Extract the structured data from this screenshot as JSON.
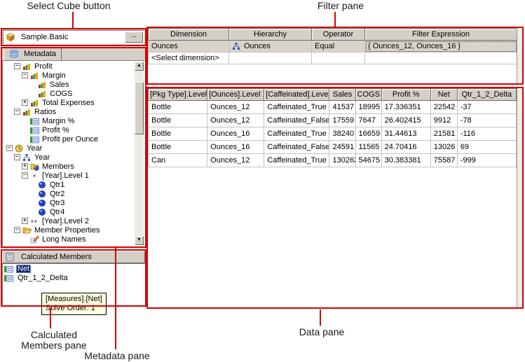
{
  "callouts": {
    "select_cube": "Select Cube button",
    "filter_pane": "Filter pane",
    "calculated_members_pane": "Calculated Members pane",
    "metadata_pane": "Metadata pane",
    "data_pane": "Data pane"
  },
  "colors": {
    "callout_red": "#d40000",
    "chrome_gray": "#d4d0c8",
    "selection_blue": "#0a246a",
    "tooltip_bg": "#ffffe1",
    "highlight_row": "#d8d4cb"
  },
  "cube_selector": {
    "value": "Sample.Basic",
    "browse_label": "...",
    "icon": "cube-icon"
  },
  "metadata_tab": {
    "label": "Metadata",
    "icon": "metadata-icon"
  },
  "metadata_tree": {
    "items": [
      {
        "label": "Profit",
        "level": 1,
        "expander": "minus",
        "icon": "chart"
      },
      {
        "label": "Margin",
        "level": 2,
        "expander": "minus",
        "icon": "chart"
      },
      {
        "label": "Sales",
        "level": 3,
        "expander": "none",
        "icon": "chart"
      },
      {
        "label": "COGS",
        "level": 3,
        "expander": "none",
        "icon": "chart"
      },
      {
        "label": "Total Expenses",
        "level": 2,
        "expander": "plus",
        "icon": "chart"
      },
      {
        "label": "Ratios",
        "level": 1,
        "expander": "minus",
        "icon": "chart"
      },
      {
        "label": "Margin %",
        "level": 2,
        "expander": "none",
        "icon": "calc"
      },
      {
        "label": "Profit %",
        "level": 2,
        "expander": "none",
        "icon": "calc"
      },
      {
        "label": "Profit per Ounce",
        "level": 2,
        "expander": "none",
        "icon": "calc"
      },
      {
        "label": "Year",
        "level": 0,
        "expander": "minus",
        "icon": "clock"
      },
      {
        "label": "Year",
        "level": 1,
        "expander": "minus",
        "icon": "hierarchy"
      },
      {
        "label": "Members",
        "level": 2,
        "expander": "plus",
        "icon": "members"
      },
      {
        "label": "[Year].Level 1",
        "level": 2,
        "expander": "minus",
        "icon": "level1"
      },
      {
        "label": "Qtr1",
        "level": 3,
        "expander": "none",
        "icon": "ball"
      },
      {
        "label": "Qtr2",
        "level": 3,
        "expander": "none",
        "icon": "ball"
      },
      {
        "label": "Qtr3",
        "level": 3,
        "expander": "none",
        "icon": "ball"
      },
      {
        "label": "Qtr4",
        "level": 3,
        "expander": "none",
        "icon": "ball"
      },
      {
        "label": "[Year].Level 2",
        "level": 2,
        "expander": "plus",
        "icon": "level2"
      },
      {
        "label": "Member Properties",
        "level": 1,
        "expander": "minus",
        "icon": "folderopen"
      },
      {
        "label": "Long Names",
        "level": 2,
        "expander": "none",
        "icon": "pencil"
      }
    ]
  },
  "calculated_members": {
    "title": "Calculated Members",
    "icon": "calculator-icon",
    "items": [
      {
        "label": "Net",
        "selected": true,
        "icon": "calc"
      },
      {
        "label": "Qtr_1_2_Delta",
        "selected": false,
        "icon": "calc"
      }
    ],
    "tooltip": {
      "line1": "[Measures].[Net]",
      "line2": "Solve Order: 1"
    }
  },
  "filter_pane": {
    "headers": [
      "Dimension",
      "Hierarchy",
      "Operator",
      "Filter Expression"
    ],
    "rows": [
      {
        "dimension": "Ounces",
        "hierarchy": "Ounces",
        "hierarchy_icon": "hierarchy",
        "operator": "Equal",
        "expression": "{ Ounces_12, Ounces_16 }",
        "highlighted": true,
        "expression_selected": true
      },
      {
        "dimension": "<Select dimension>",
        "hierarchy": "",
        "hierarchy_icon": "",
        "operator": "",
        "expression": "",
        "highlighted": false,
        "expression_selected": false
      }
    ]
  },
  "data_pane": {
    "headers": [
      "[Pkg Type].Level 1",
      "[Ounces].Level 1",
      "[Caffeinated].Level 1",
      "Sales",
      "COGS",
      "Profit %",
      "Net",
      "Qtr_1_2_Delta"
    ],
    "rows": [
      [
        "Bottle",
        "Ounces_12",
        "Caffeinated_True",
        "41537",
        "18995",
        "17.336351",
        "22542",
        "-37"
      ],
      [
        "Bottle",
        "Ounces_12",
        "Caffeinated_False",
        "17559",
        "7647",
        "26.402415",
        "9912",
        "-78"
      ],
      [
        "Bottle",
        "Ounces_16",
        "Caffeinated_True",
        "38240",
        "16659",
        "31.44613",
        "21581",
        "-116"
      ],
      [
        "Bottle",
        "Ounces_16",
        "Caffeinated_False",
        "24591",
        "11565",
        "24.70416",
        "13026",
        "69"
      ],
      [
        "Can",
        "Ounces_12",
        "Caffeinated_True",
        "130262",
        "54675",
        "30.383381",
        "75587",
        "-999"
      ]
    ]
  }
}
